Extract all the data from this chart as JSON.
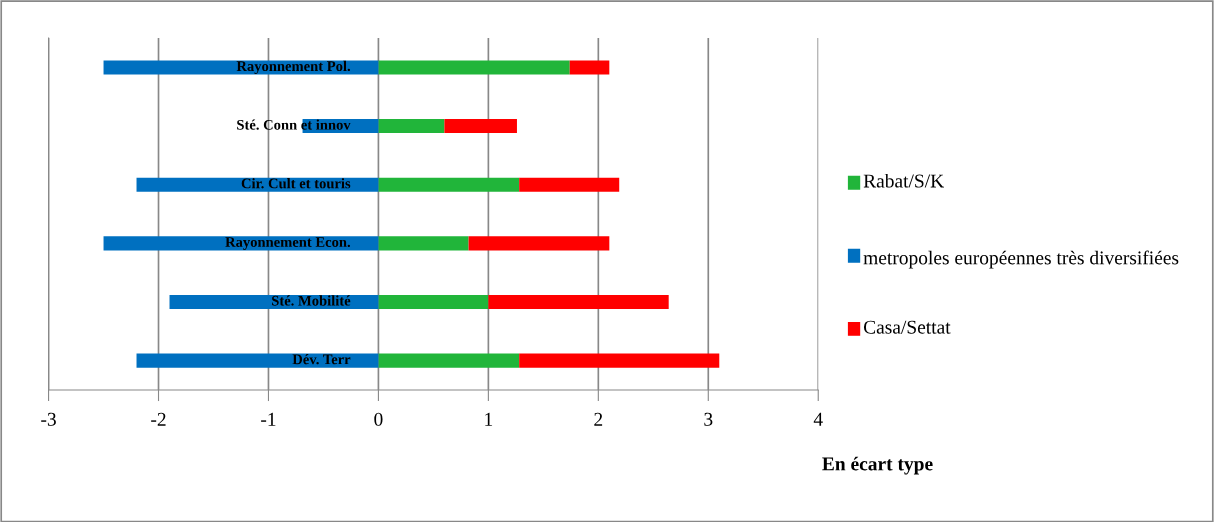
{
  "chart_data": {
    "type": "bar",
    "orientation": "horizontal",
    "stacked": true,
    "categories": [
      "Rayonnement Pol.",
      "Sté. Conn et innov",
      "Cir. Cult et touris",
      "Rayonnement Econ.",
      "Sté. Mobilité",
      "Dév. Terr"
    ],
    "series": [
      {
        "name": "Rabat/S/K",
        "color": "#21b53a",
        "values": [
          1.74,
          0.6,
          1.28,
          0.82,
          1.0,
          1.28
        ]
      },
      {
        "name": "metropoles européennes très diversifiées",
        "color": "#0070c0",
        "values": [
          -2.5,
          -0.69,
          -2.2,
          -2.5,
          -1.9,
          -2.2
        ]
      },
      {
        "name": "Casa/Settat",
        "color": "#ff0000",
        "values": [
          0.36,
          0.66,
          0.91,
          1.28,
          1.64,
          1.82
        ]
      }
    ],
    "xlim": [
      -3,
      4
    ],
    "xticks": [
      -3,
      -2,
      -1,
      0,
      1,
      2,
      3,
      4
    ],
    "xlabel": "En écart type",
    "grid": "x",
    "legend": "right"
  }
}
